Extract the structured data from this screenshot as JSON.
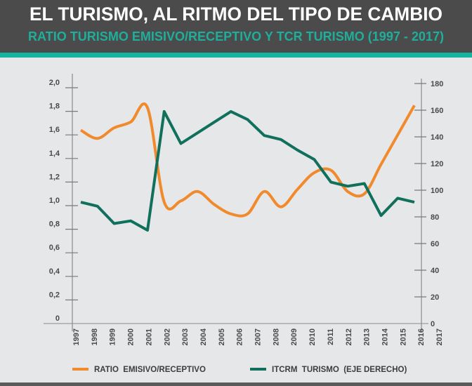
{
  "header": {
    "title": "EL TURISMO, AL RITMO DEL TIPO DE CAMBIO",
    "subtitle": "RATIO TURISMO EMISIVO/RECEPTIVO Y TCR TURISMO (1997 - 2017)"
  },
  "colors": {
    "header_bg": "#4b4b4b",
    "accent": "#17b3a1",
    "title": "#ffffff",
    "subtitle": "#1fae9c",
    "background": "#e6e7e8",
    "ratio": "#f08a2c",
    "itcrm": "#11705c"
  },
  "chart_data": {
    "type": "line",
    "title": "EL TURISMO, AL RITMO DEL TIPO DE CAMBIO",
    "subtitle": "RATIO TURISMO EMISIVO/RECEPTIVO Y TCR TURISMO (1997 - 2017)",
    "x": [
      1997,
      1998,
      1999,
      2000,
      2001,
      2002,
      2003,
      2004,
      2005,
      2006,
      2007,
      2008,
      2009,
      2010,
      2011,
      2012,
      2013,
      2014,
      2015,
      2016,
      2017
    ],
    "x_tick_labels": [
      "1997",
      "1998",
      "1999",
      "2000",
      "2001",
      "2002",
      "2003",
      "2004",
      "2005",
      "2006",
      "2007",
      "2008",
      "2009",
      "2010",
      "2011",
      "2012",
      "2013",
      "2014",
      "2015",
      "2016",
      "2017"
    ],
    "left_axis": {
      "ylim": [
        0,
        2.0
      ],
      "tick_labels": [
        "0",
        "0,2",
        "0,4",
        "0,6",
        "0,8",
        "1,0",
        "1,2",
        "1,4",
        "1,6",
        "1,8",
        "2,0"
      ]
    },
    "right_axis": {
      "ylim": [
        0,
        180
      ],
      "tick_labels": [
        "0",
        "20",
        "40",
        "60",
        "80",
        "100",
        "120",
        "140",
        "160",
        "180"
      ]
    },
    "series": [
      {
        "name": "RATIO  EMISIVO/RECEPTIVO",
        "axis": "left",
        "color": "#f08a2c",
        "smooth": true,
        "values": [
          1.64,
          1.57,
          1.66,
          1.71,
          1.83,
          1.03,
          1.04,
          1.12,
          1.01,
          0.93,
          0.93,
          1.12,
          0.99,
          1.14,
          1.28,
          1.3,
          1.12,
          1.1,
          1.35,
          1.6,
          1.85
        ]
      },
      {
        "name": "ITCRM  TURISMO  (EJE DERECHO)",
        "axis": "right",
        "color": "#11705c",
        "smooth": false,
        "values": [
          91,
          88,
          75,
          77,
          70,
          159,
          135,
          143,
          151,
          159,
          153,
          141,
          138,
          130,
          123,
          106,
          103,
          105,
          81,
          94,
          91
        ]
      }
    ],
    "legend": "bottom",
    "grid": false
  }
}
